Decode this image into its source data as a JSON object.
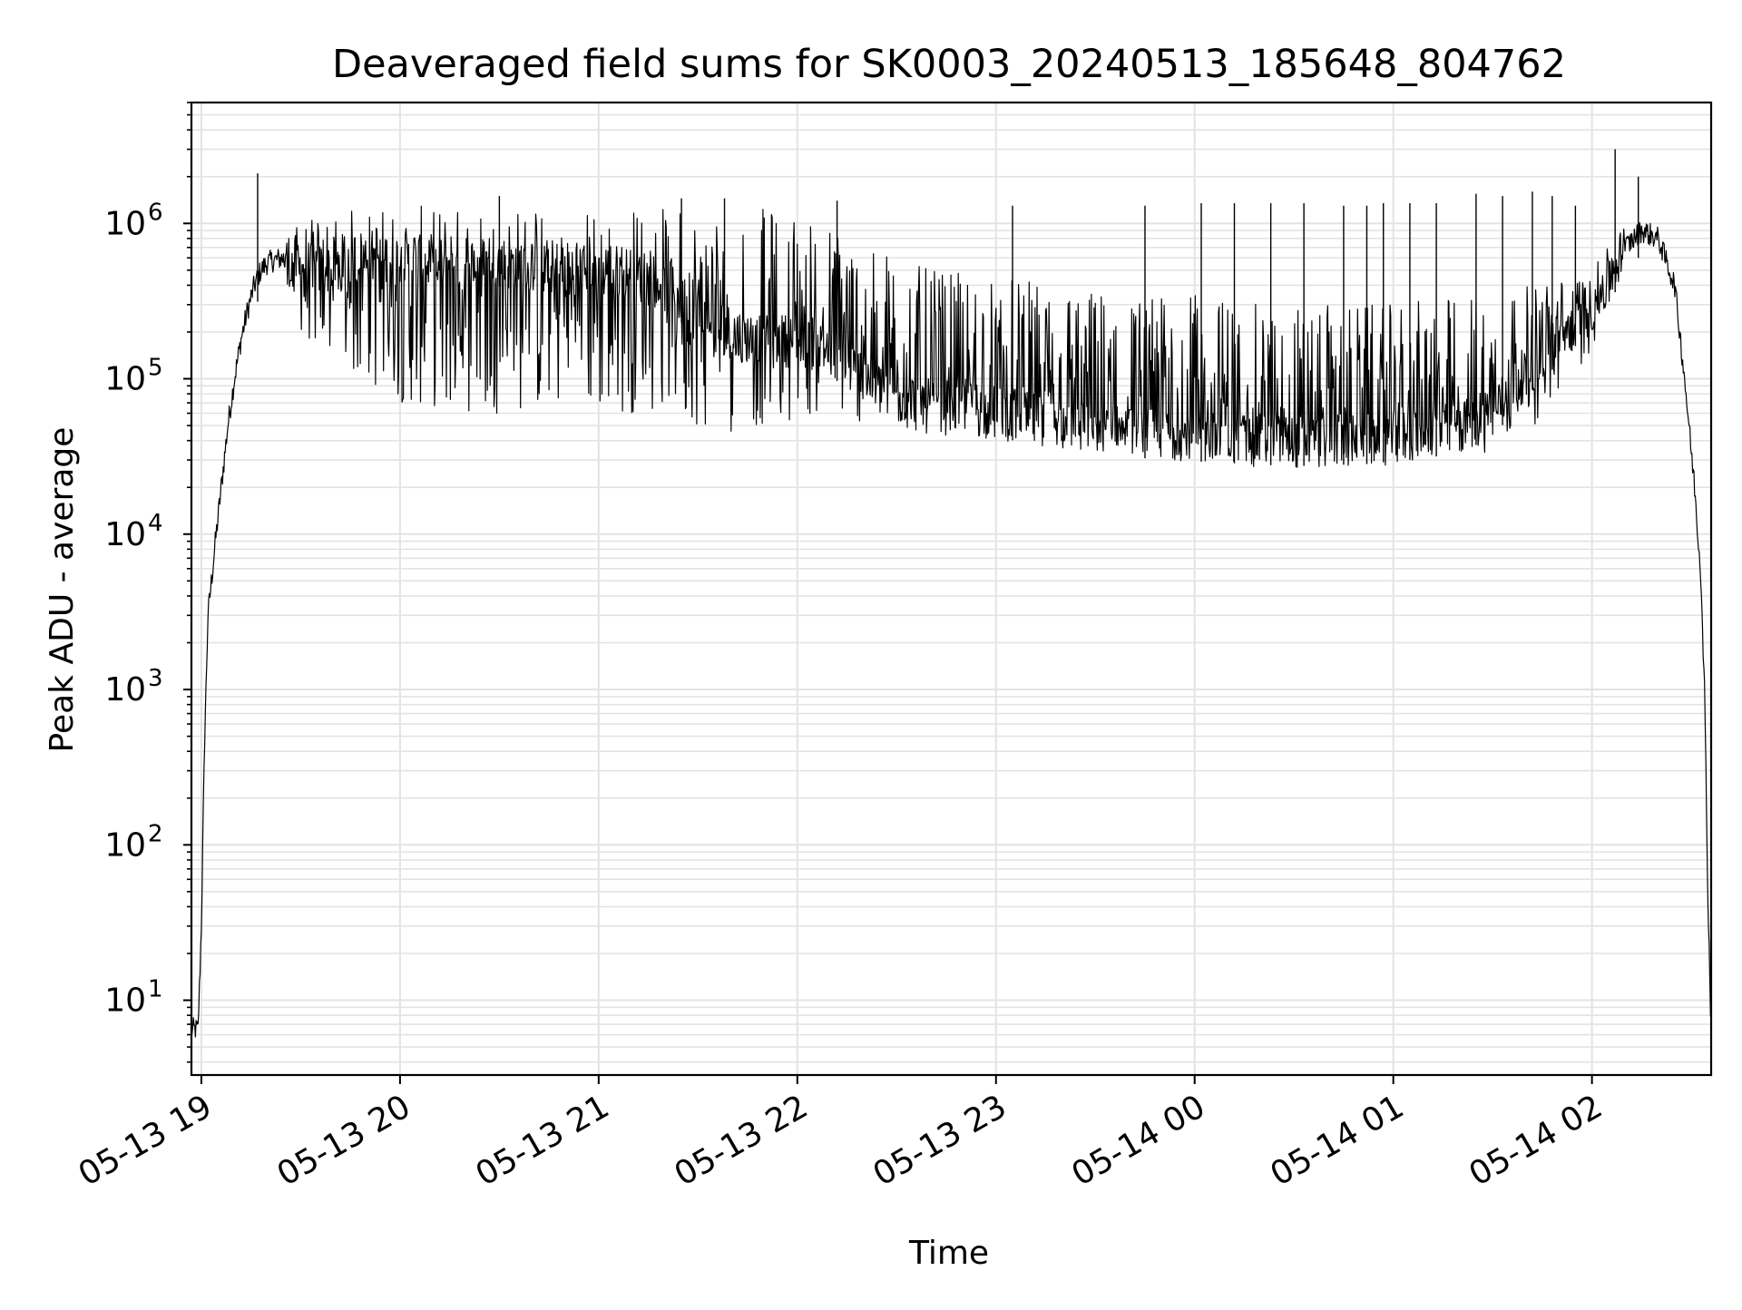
{
  "chart_data": {
    "type": "line",
    "title": "Deaveraged field sums for SK0003_20240513_185648_804762",
    "xlabel": "Time",
    "ylabel": "Peak ADU - average",
    "yscale": "log",
    "ylim": [
      3.3,
      6000000
    ],
    "xlim": [
      "05-13 18:57:00",
      "05-14 02:36:00"
    ],
    "grid": true,
    "grid_color": "#e3e3e3",
    "line_color": "#000000",
    "x_ticks": [
      {
        "time": "05-13 19:00",
        "label": "05-13 19"
      },
      {
        "time": "05-13 20:00",
        "label": "05-13 20"
      },
      {
        "time": "05-13 21:00",
        "label": "05-13 21"
      },
      {
        "time": "05-13 22:00",
        "label": "05-13 22"
      },
      {
        "time": "05-13 23:00",
        "label": "05-13 23"
      },
      {
        "time": "05-14 00:00",
        "label": "05-14 00"
      },
      {
        "time": "05-14 01:00",
        "label": "05-14 01"
      },
      {
        "time": "05-14 02:00",
        "label": "05-14 02"
      }
    ],
    "y_ticks": [
      {
        "value": 10,
        "base": "10",
        "exp": "1"
      },
      {
        "value": 100,
        "base": "10",
        "exp": "2"
      },
      {
        "value": 1000,
        "base": "10",
        "exp": "3"
      },
      {
        "value": 10000,
        "base": "10",
        "exp": "4"
      },
      {
        "value": 100000,
        "base": "10",
        "exp": "5"
      },
      {
        "value": 1000000,
        "base": "10",
        "exp": "6"
      }
    ],
    "series": [
      {
        "x": [
          "05-13 18:57:00",
          "05-13 18:58:00",
          "05-13 18:59:00",
          "05-13 19:00:00",
          "05-13 19:01:00",
          "05-13 19:02:00",
          "05-13 19:04:00",
          "05-13 19:06:00",
          "05-13 19:08:00",
          "05-13 19:10:00",
          "05-13 19:12:00",
          "05-13 19:14:00",
          "05-13 19:16:00",
          "05-13 19:18:00",
          "05-13 19:20:00",
          "05-13 19:22:00",
          "05-13 19:25:00",
          "05-13 19:30:00",
          "05-13 19:35:00",
          "05-13 19:40:00",
          "05-13 19:45:00",
          "05-13 19:50:00",
          "05-13 19:55:00",
          "05-13 20:00:00",
          "05-13 20:10:00",
          "05-13 20:20:00",
          "05-13 20:30:00",
          "05-13 20:40:00",
          "05-13 20:50:00",
          "05-13 21:00:00",
          "05-13 21:10:00",
          "05-13 21:20:00",
          "05-13 21:30:00",
          "05-13 21:40:00",
          "05-13 21:50:00",
          "05-13 22:00:00",
          "05-13 22:10:00",
          "05-13 22:20:00",
          "05-13 22:30:00",
          "05-13 22:40:00",
          "05-13 22:50:00",
          "05-13 23:00:00",
          "05-13 23:10:00",
          "05-13 23:20:00",
          "05-13 23:30:00",
          "05-13 23:40:00",
          "05-13 23:50:00",
          "05-14 00:00:00",
          "05-14 00:10:00",
          "05-14 00:20:00",
          "05-14 00:30:00",
          "05-14 00:40:00",
          "05-14 00:50:00",
          "05-14 01:00:00",
          "05-14 01:10:00",
          "05-14 01:20:00",
          "05-14 01:30:00",
          "05-14 01:40:00",
          "05-14 01:50:00",
          "05-14 02:00:00",
          "05-14 02:05:00",
          "05-14 02:10:00",
          "05-14 02:15:00",
          "05-14 02:20:00",
          "05-14 02:25:00",
          "05-14 02:28:00",
          "05-14 02:31:00",
          "05-14 02:33:00",
          "05-14 02:34:00",
          "05-14 02:35:00",
          "05-14 02:36:00"
        ],
        "y": [
          6.5,
          6.5,
          6.5,
          30,
          500,
          3000,
          8000,
          20000,
          50000,
          100000,
          180000,
          280000,
          400000,
          500000,
          560000,
          580000,
          600000,
          550000,
          500000,
          550000,
          600000,
          620000,
          600000,
          580000,
          570000,
          560000,
          560000,
          540000,
          520000,
          500000,
          480000,
          400000,
          270000,
          200000,
          170000,
          180000,
          150000,
          100000,
          75000,
          70000,
          65000,
          60000,
          55000,
          50000,
          47000,
          45000,
          43000,
          42000,
          41000,
          40000,
          39000,
          40000,
          40000,
          42000,
          44000,
          48000,
          60000,
          110000,
          180000,
          300000,
          420000,
          700000,
          900000,
          800000,
          400000,
          100000,
          20000,
          5000,
          1000,
          50,
          6
        ]
      }
    ],
    "lower_envelope": {
      "x": [
        "05-13 19:25:00",
        "05-13 19:30:00",
        "05-13 19:35:00",
        "05-13 19:40:00",
        "05-13 19:50:00",
        "05-13 20:00:00",
        "05-13 20:10:00",
        "05-13 20:20:00",
        "05-13 20:30:00",
        "05-13 20:40:00",
        "05-13 20:50:00",
        "05-13 21:00:00",
        "05-13 21:10:00",
        "05-13 21:20:00",
        "05-13 21:30:00",
        "05-13 21:40:00",
        "05-13 21:50:00",
        "05-13 22:00:00",
        "05-13 22:10:00",
        "05-13 22:20:00",
        "05-13 22:30:00",
        "05-13 22:40:00",
        "05-13 22:50:00",
        "05-13 23:00:00",
        "05-13 23:10:00",
        "05-13 23:20:00",
        "05-13 23:30:00",
        "05-13 23:40:00",
        "05-13 23:50:00",
        "05-14 00:00:00",
        "05-14 00:10:00",
        "05-14 00:20:00",
        "05-14 00:30:00",
        "05-14 00:40:00",
        "05-14 00:50:00",
        "05-14 01:00:00",
        "05-14 01:10:00",
        "05-14 01:20:00",
        "05-14 01:30:00",
        "05-14 01:40:00",
        "05-14 01:50:00",
        "05-14 02:00:00",
        "05-14 02:05:00",
        "05-14 02:10:00"
      ],
      "y": [
        300000,
        200000,
        150000,
        120000,
        90000,
        70000,
        65000,
        60000,
        60000,
        62000,
        65000,
        62000,
        60000,
        62000,
        48000,
        45000,
        50000,
        55000,
        60000,
        50000,
        45000,
        43000,
        42000,
        40000,
        38000,
        35000,
        33000,
        33000,
        32000,
        32000,
        31000,
        30000,
        29000,
        29000,
        29000,
        30000,
        30000,
        32000,
        34000,
        40000,
        80000,
        150000,
        300000,
        500000
      ]
    },
    "upper_envelope": {
      "x": [
        "05-13 19:25:00",
        "05-13 19:30:00",
        "05-13 19:40:00",
        "05-13 19:50:00",
        "05-13 20:00:00",
        "05-13 20:20:00",
        "05-13 20:40:00",
        "05-13 21:00:00",
        "05-13 21:20:00",
        "05-13 21:40:00",
        "05-13 22:00:00",
        "05-13 22:20:00",
        "05-13 22:40:00",
        "05-13 23:00:00",
        "05-13 23:20:00",
        "05-13 23:40:00",
        "05-14 00:00:00",
        "05-14 00:20:00",
        "05-14 00:40:00",
        "05-14 01:00:00",
        "05-14 01:20:00",
        "05-14 01:40:00",
        "05-14 02:00:00",
        "05-14 02:10:00"
      ],
      "y": [
        900000,
        1000000,
        1200000,
        1300000,
        1300000,
        1300000,
        1300000,
        1250000,
        1300000,
        1300000,
        1250000,
        800000,
        500000,
        450000,
        400000,
        350000,
        350000,
        300000,
        300000,
        300000,
        350000,
        400000,
        500000,
        1000000
      ]
    },
    "spikes": [
      {
        "x": "05-13 19:17:00",
        "y": 2100000
      },
      {
        "x": "05-13 20:30:00",
        "y": 1500000
      },
      {
        "x": "05-13 21:25:00",
        "y": 1450000
      },
      {
        "x": "05-13 21:38:00",
        "y": 1450000
      },
      {
        "x": "05-13 22:12:00",
        "y": 1400000
      },
      {
        "x": "05-13 23:05:00",
        "y": 1300000
      },
      {
        "x": "05-13 23:45:00",
        "y": 1300000
      },
      {
        "x": "05-14 00:02:00",
        "y": 1350000
      },
      {
        "x": "05-14 00:12:00",
        "y": 1350000
      },
      {
        "x": "05-14 00:23:00",
        "y": 1350000
      },
      {
        "x": "05-14 00:33:00",
        "y": 1350000
      },
      {
        "x": "05-14 00:45:00",
        "y": 1300000
      },
      {
        "x": "05-14 00:52:00",
        "y": 1300000
      },
      {
        "x": "05-14 00:57:00",
        "y": 1350000
      },
      {
        "x": "05-14 01:05:00",
        "y": 1350000
      },
      {
        "x": "05-14 01:13:00",
        "y": 1350000
      },
      {
        "x": "05-14 01:25:00",
        "y": 1550000
      },
      {
        "x": "05-14 01:33:00",
        "y": 1500000
      },
      {
        "x": "05-14 01:42:00",
        "y": 1600000
      },
      {
        "x": "05-14 01:48:00",
        "y": 1500000
      },
      {
        "x": "05-14 01:55:00",
        "y": 1300000
      },
      {
        "x": "05-14 02:07:00",
        "y": 3000000
      },
      {
        "x": "05-14 02:14:00",
        "y": 2000000
      }
    ]
  }
}
